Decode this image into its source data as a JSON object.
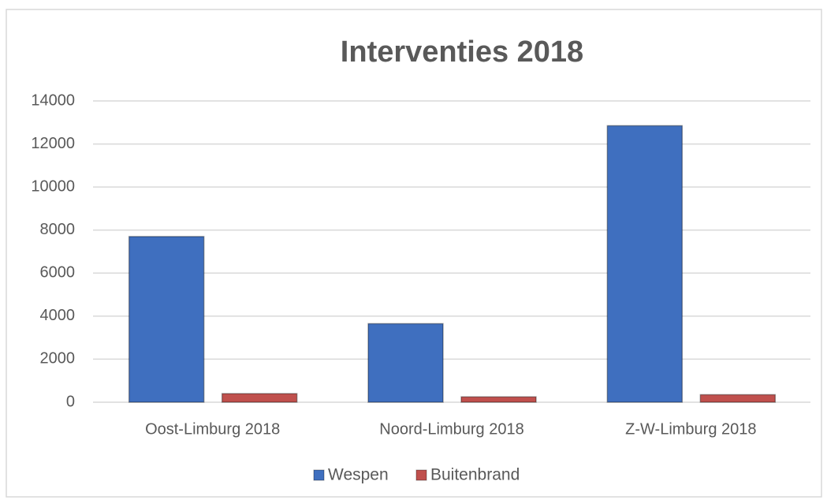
{
  "chart_data": {
    "type": "bar",
    "title": "Interventies 2018",
    "categories": [
      "Oost-Limburg 2018",
      "Noord-Limburg 2018",
      "Z-W-Limburg 2018"
    ],
    "series": [
      {
        "name": "Wespen",
        "color": "#3f6fbf",
        "values": [
          7700,
          3650,
          12850
        ]
      },
      {
        "name": "Buitenbrand",
        "color": "#c0504d",
        "values": [
          400,
          250,
          350
        ]
      }
    ],
    "ylim": [
      0,
      14000
    ],
    "yticks": [
      0,
      2000,
      4000,
      6000,
      8000,
      10000,
      12000,
      14000
    ],
    "grid": true,
    "legend": "bottom"
  }
}
